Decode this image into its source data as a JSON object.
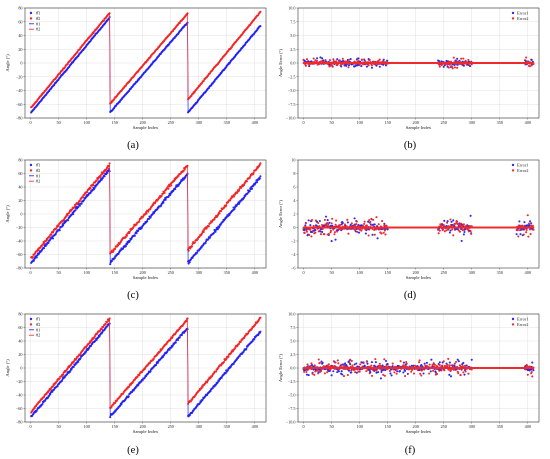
{
  "figure": {
    "panels": [
      "a",
      "b",
      "c",
      "d",
      "e",
      "f"
    ]
  },
  "colors": {
    "estimate1": "#2a2af0",
    "estimate2": "#f02a2a",
    "true1": "#1c1cff",
    "true2": "#ff2020",
    "grid": "#d9d9d9"
  },
  "chart_data": [
    {
      "panel": "a",
      "caption": "(a)",
      "type": "scatter",
      "xlabel": "Sample Index",
      "ylabel": "Angle (°)",
      "xlim": [
        -10,
        420
      ],
      "ylim": [
        -80,
        80
      ],
      "xticks": [
        0,
        50,
        100,
        150,
        200,
        250,
        300,
        350,
        400
      ],
      "yticks": [
        -80,
        -60,
        -40,
        -20,
        0,
        20,
        40,
        60,
        80
      ],
      "grid": true,
      "legend": "top-left",
      "legend_labels": [
        "θ̂1",
        "θ̂2",
        "θ1",
        "θ2"
      ],
      "segments": [
        {
          "x": [
            1,
            141
          ],
          "true1": [
            -72,
            66
          ],
          "true2": [
            -65,
            73
          ]
        },
        {
          "x": [
            142,
            280
          ],
          "true1": [
            -72,
            59
          ],
          "true2": [
            -59,
            72
          ]
        },
        {
          "x": [
            281,
            410
          ],
          "true1": [
            -72,
            54
          ],
          "true2": [
            -53,
            74
          ]
        }
      ],
      "noise": 0.6
    },
    {
      "panel": "b",
      "caption": "(b)",
      "type": "scatter",
      "xlabel": "Sample Index",
      "ylabel": "Angle Error (°)",
      "xlim": [
        -10,
        420
      ],
      "ylim": [
        -10,
        10
      ],
      "xticks": [
        0,
        50,
        100,
        150,
        200,
        250,
        300,
        350,
        400
      ],
      "yticks": [
        -10.0,
        -7.5,
        -5.0,
        -2.5,
        0.0,
        2.5,
        5.0,
        7.5,
        10.0
      ],
      "ytick_labels": [
        "−10.0",
        "−7.5",
        "−5.0",
        "−2.5",
        "0.0",
        "2.5",
        "5.0",
        "7.5",
        "10.0"
      ],
      "grid": true,
      "legend": "top-right",
      "legend_labels": [
        "Error1",
        "Error2"
      ],
      "error_spread": 0.6,
      "active_ranges": [
        [
          0,
          150
        ],
        [
          240,
          300
        ],
        [
          395,
          410
        ]
      ]
    },
    {
      "panel": "c",
      "caption": "(c)",
      "type": "scatter",
      "xlabel": "Sample Index",
      "ylabel": "Angle (°)",
      "xlim": [
        -10,
        420
      ],
      "ylim": [
        -80,
        80
      ],
      "xticks": [
        0,
        50,
        100,
        150,
        200,
        250,
        300,
        350,
        400
      ],
      "yticks": [
        -80,
        -60,
        -40,
        -20,
        0,
        20,
        40,
        60,
        80
      ],
      "grid": true,
      "legend": "top-left",
      "legend_labels": [
        "θ̂1",
        "θ̂2",
        "θ1",
        "θ2"
      ],
      "segments": [
        {
          "x": [
            1,
            141
          ],
          "true1": [
            -72,
            66
          ],
          "true2": [
            -65,
            73
          ]
        },
        {
          "x": [
            142,
            280
          ],
          "true1": [
            -72,
            59
          ],
          "true2": [
            -59,
            72
          ]
        },
        {
          "x": [
            281,
            410
          ],
          "true1": [
            -72,
            54
          ],
          "true2": [
            -53,
            74
          ]
        }
      ],
      "noise": 1.6
    },
    {
      "panel": "d",
      "caption": "(d)",
      "type": "scatter",
      "xlabel": "Sample Index",
      "ylabel": "Angle Error (°)",
      "xlim": [
        -10,
        420
      ],
      "ylim": [
        -6,
        10
      ],
      "xticks": [
        0,
        50,
        100,
        150,
        200,
        250,
        300,
        350,
        400
      ],
      "yticks": [
        -6,
        -4,
        -2,
        0,
        2,
        4,
        6,
        8,
        10
      ],
      "ytick_labels": [
        "−6",
        "−4",
        "−2",
        "0",
        "2",
        "4",
        "6",
        "8",
        "10"
      ],
      "grid": false,
      "legend": "top-right",
      "legend_labels": [
        "Error1",
        "Error2"
      ],
      "error_spread": 1.1,
      "active_ranges": [
        [
          0,
          150
        ],
        [
          240,
          300
        ],
        [
          380,
          410
        ]
      ]
    },
    {
      "panel": "e",
      "caption": "(e)",
      "type": "scatter",
      "xlabel": "Sample Index",
      "ylabel": "Angle (°)",
      "xlim": [
        -10,
        420
      ],
      "ylim": [
        -80,
        80
      ],
      "xticks": [
        0,
        50,
        100,
        150,
        200,
        250,
        300,
        350,
        400
      ],
      "yticks": [
        -80,
        -60,
        -40,
        -20,
        0,
        20,
        40,
        60,
        80
      ],
      "grid": true,
      "legend": "top-left",
      "legend_labels": [
        "θ̂1",
        "θ̂2",
        "θ1",
        "θ2"
      ],
      "segments": [
        {
          "x": [
            1,
            141
          ],
          "true1": [
            -72,
            66
          ],
          "true2": [
            -65,
            73
          ]
        },
        {
          "x": [
            142,
            280
          ],
          "true1": [
            -72,
            59
          ],
          "true2": [
            -59,
            72
          ]
        },
        {
          "x": [
            281,
            410
          ],
          "true1": [
            -72,
            54
          ],
          "true2": [
            -53,
            74
          ]
        }
      ],
      "noise": 1.2
    },
    {
      "panel": "f",
      "caption": "(f)",
      "type": "scatter",
      "xlabel": "Sample Index",
      "ylabel": "Angle Error (°)",
      "xlim": [
        -10,
        420
      ],
      "ylim": [
        -10,
        10
      ],
      "xticks": [
        0,
        50,
        100,
        150,
        200,
        250,
        300,
        350,
        400
      ],
      "yticks": [
        -10.0,
        -7.5,
        -5.0,
        -2.5,
        0.0,
        2.5,
        5.0,
        7.5,
        10.0
      ],
      "ytick_labels": [
        "−10.0",
        "−7.5",
        "−5.0",
        "−2.5",
        "0.0",
        "2.5",
        "5.0",
        "7.5",
        "10.0"
      ],
      "grid": true,
      "legend": "top-right",
      "legend_labels": [
        "Error1",
        "Error2"
      ],
      "error_spread": 1.1,
      "active_ranges": [
        [
          0,
          300
        ],
        [
          395,
          410
        ]
      ]
    }
  ]
}
